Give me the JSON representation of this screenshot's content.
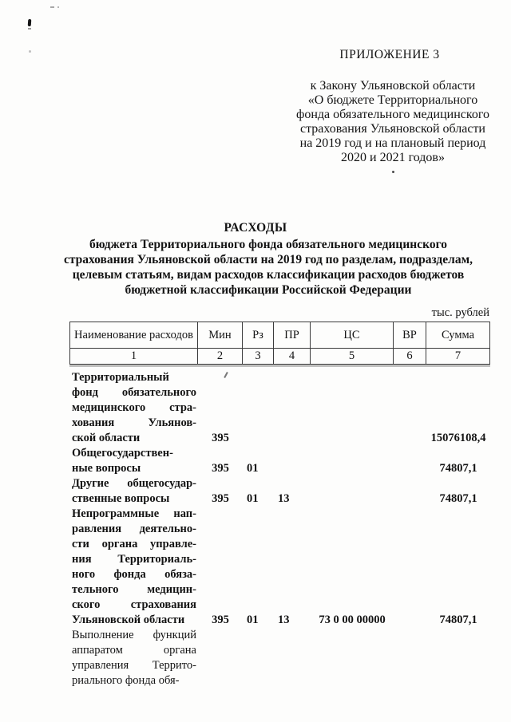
{
  "header": {
    "appendix_label": "ПРИЛОЖЕНИЕ 3",
    "law_reference_lines": [
      "к Закону Ульяновской области",
      "«О бюджете Территориального",
      "фонда обязательного медицинского",
      "страхования Ульяновской области",
      "на 2019 год и на плановый период",
      "2020 и 2021 годов»"
    ]
  },
  "title_block": {
    "heading": "РАСХОДЫ",
    "subtitle_lines": [
      "бюджета Территориального фонда обязательного медицинского",
      "страхования Ульяновской области на 2019 год по разделам, подразделам,",
      "целевым статьям, видам расходов классификации расходов бюджетов",
      "бюджетной классификации Российской Федерации"
    ],
    "units_label": "тыс. рублей"
  },
  "table": {
    "columns": [
      {
        "label": "Наименование расходов",
        "number": "1"
      },
      {
        "label": "Мин",
        "number": "2"
      },
      {
        "label": "Рз",
        "number": "3"
      },
      {
        "label": "ПР",
        "number": "4"
      },
      {
        "label": "ЦС",
        "number": "5"
      },
      {
        "label": "ВР",
        "number": "6"
      },
      {
        "label": "Сумма",
        "number": "7"
      }
    ],
    "rows": [
      {
        "name_lines": [
          "Территориальный",
          "фонд обязательного",
          "медицинского стра-",
          "хования Ульянов-",
          "ской области"
        ],
        "min": "395",
        "rz": "",
        "pr": "",
        "cs": "",
        "vr": "",
        "sum": "15076108,4",
        "bold": true
      },
      {
        "name_lines": [
          "Общегосударствен-",
          "ные вопросы"
        ],
        "min": "395",
        "rz": "01",
        "pr": "",
        "cs": "",
        "vr": "",
        "sum": "74807,1",
        "bold": true
      },
      {
        "name_lines": [
          "Другие общегосудар-",
          "ственные вопросы"
        ],
        "min": "395",
        "rz": "01",
        "pr": "13",
        "cs": "",
        "vr": "",
        "sum": "74807,1",
        "bold": true
      },
      {
        "name_lines": [
          "Непрограммные нап-",
          "равления деятельно-",
          "сти органа управле-",
          "ния Территориаль-",
          "ного фонда обяза-",
          "тельного медицин-",
          "ского страхования",
          "Ульяновской области"
        ],
        "min": "395",
        "rz": "01",
        "pr": "13",
        "cs": "73 0 00 00000",
        "vr": "",
        "sum": "74807,1",
        "bold": true
      },
      {
        "name_lines": [
          "Выполнение функций",
          "аппаратом органа",
          "управления Террито-",
          "риального фонда обя-"
        ],
        "min": "",
        "rz": "",
        "pr": "",
        "cs": "",
        "vr": "",
        "sum": "",
        "bold": false
      }
    ]
  }
}
